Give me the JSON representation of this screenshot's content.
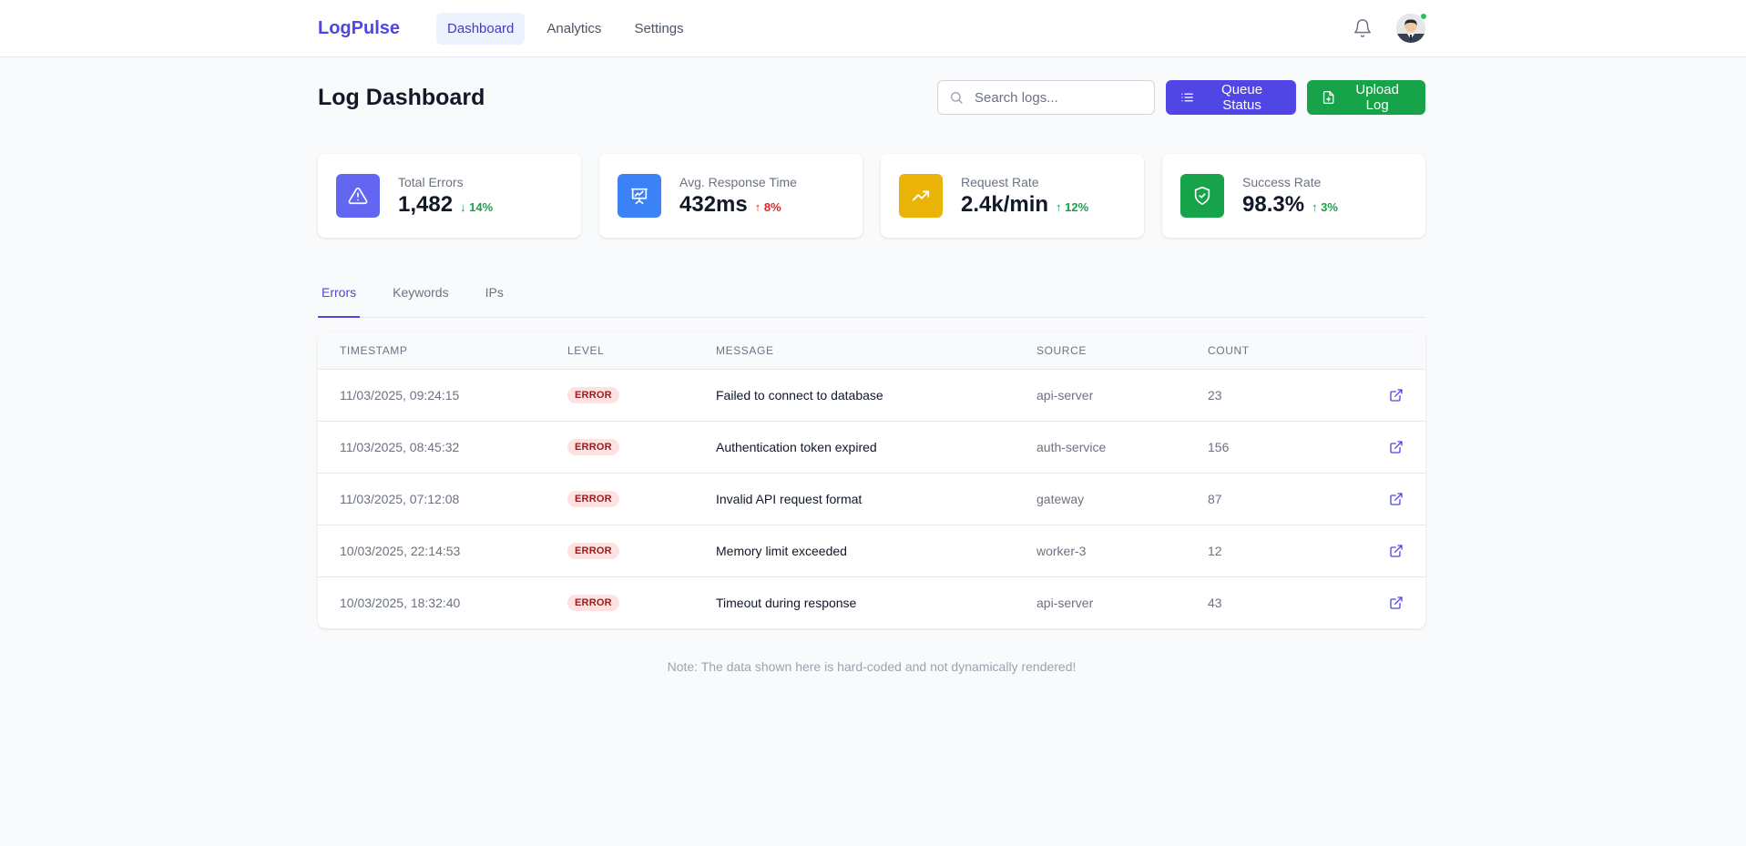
{
  "app": {
    "logo": "LogPulse",
    "nav": [
      {
        "label": "Dashboard",
        "active": true
      },
      {
        "label": "Analytics",
        "active": false
      },
      {
        "label": "Settings",
        "active": false
      }
    ],
    "notification_icon": "bell-icon",
    "avatar_status_color": "#22c55e"
  },
  "header": {
    "title": "Log Dashboard",
    "search_placeholder": "Search logs...",
    "search_value": "",
    "queue_button": "Queue Status",
    "upload_button": "Upload Log"
  },
  "stats": [
    {
      "label": "Total Errors",
      "value": "1,482",
      "delta": "↓ 14%",
      "color": "#6366f1",
      "icon": "warning-triangle-icon",
      "delta_color": "#16a34a"
    },
    {
      "label": "Avg. Response Time",
      "value": "432ms",
      "delta": "↑ 8%",
      "color": "#3b82f6",
      "icon": "presentation-chart-icon",
      "delta_color": "#dc2626"
    },
    {
      "label": "Request Rate",
      "value": "2.4k/min",
      "delta": "↑ 12%",
      "color": "#eab308",
      "icon": "trending-up-icon",
      "delta_color": "#16a34a"
    },
    {
      "label": "Success Rate",
      "value": "98.3%",
      "delta": "↑ 3%",
      "color": "#16a34a",
      "icon": "shield-check-icon",
      "delta_color": "#16a34a"
    }
  ],
  "tabs": [
    {
      "label": "Errors",
      "active": true
    },
    {
      "label": "Keywords",
      "active": false
    },
    {
      "label": "IPs",
      "active": false
    }
  ],
  "table": {
    "columns": [
      "TIMESTAMP",
      "LEVEL",
      "MESSAGE",
      "SOURCE",
      "COUNT"
    ],
    "rows": [
      {
        "timestamp": "11/03/2025, 09:24:15",
        "level": "ERROR",
        "message": "Failed to connect to database",
        "source": "api-server",
        "count": "23"
      },
      {
        "timestamp": "11/03/2025, 08:45:32",
        "level": "ERROR",
        "message": "Authentication token expired",
        "source": "auth-service",
        "count": "156"
      },
      {
        "timestamp": "11/03/2025, 07:12:08",
        "level": "ERROR",
        "message": "Invalid API request format",
        "source": "gateway",
        "count": "87"
      },
      {
        "timestamp": "10/03/2025, 22:14:53",
        "level": "ERROR",
        "message": "Memory limit exceeded",
        "source": "worker-3",
        "count": "12"
      },
      {
        "timestamp": "10/03/2025, 18:32:40",
        "level": "ERROR",
        "message": "Timeout during response",
        "source": "api-server",
        "count": "43"
      }
    ]
  },
  "footer_note": "Note: The data shown here is hard-coded and not dynamically rendered!"
}
